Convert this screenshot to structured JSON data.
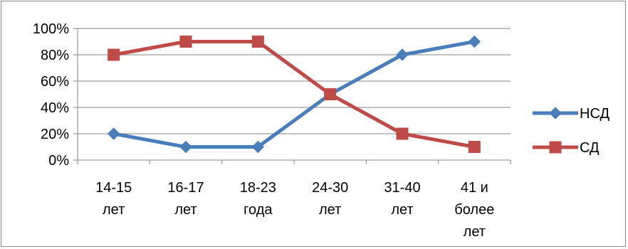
{
  "chart_data": {
    "type": "line",
    "title": "",
    "xlabel": "",
    "ylabel": "",
    "categories": [
      [
        "14-15",
        "лет"
      ],
      [
        "16-17",
        "лет"
      ],
      [
        "18-23",
        "года"
      ],
      [
        "24-30",
        "лет"
      ],
      [
        "31-40",
        "лет"
      ],
      [
        "41 и",
        "более",
        "лет"
      ]
    ],
    "y_ticks": [
      "0%",
      "20%",
      "40%",
      "60%",
      "80%",
      "100%"
    ],
    "ylim": [
      0,
      100
    ],
    "y_unit": "%",
    "grid": true,
    "legend_position": "right",
    "series": [
      {
        "name": "НСД",
        "values": [
          20,
          10,
          10,
          50,
          80,
          90
        ],
        "color": "#4a7ebb",
        "marker": "diamond"
      },
      {
        "name": "СД",
        "values": [
          80,
          90,
          90,
          50,
          20,
          10
        ],
        "color": "#be4b48",
        "marker": "square"
      }
    ]
  }
}
